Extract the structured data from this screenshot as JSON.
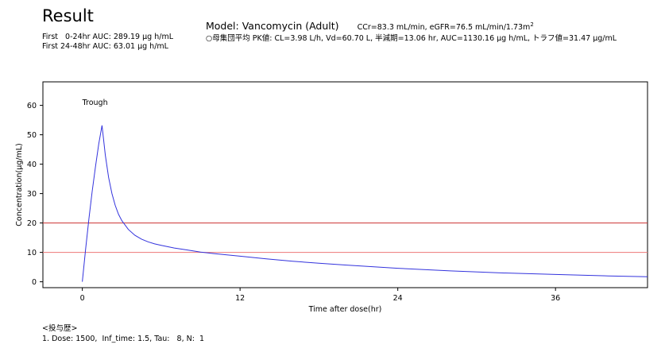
{
  "header": {
    "title": "Result",
    "auc_first_0_24": "First   0-24hr AUC: 289.19 μg h/mL",
    "auc_first_24_48": "First 24-48hr AUC: 63.01 μg h/mL",
    "model": "Model: Vancomycin (Adult)",
    "renal": "CCr=83.3 mL/min,  eGFR=76.5 mL/min/1.73m",
    "renal_sup": "2",
    "pk_params": "○母集団平均 PK値: CL=3.98 L/h, Vd=60.70 L, 半減期=13.06 hr, AUC=1130.16 μg h/mL, トラフ値=31.47 μg/mL"
  },
  "dose_history": {
    "heading": "<投与歴>",
    "entries": [
      "1. Dose: 1500,  Inf_time: 1.5, Tau:   8, N:  1"
    ]
  },
  "chart_data": {
    "type": "line",
    "xlabel": "Time after dose(hr)",
    "ylabel": "Concentration(μg/mL)",
    "xlim": [
      -3,
      43
    ],
    "ylim": [
      -2,
      68
    ],
    "x_ticks": [
      0,
      12,
      24,
      36
    ],
    "y_ticks": [
      0,
      10,
      20,
      30,
      40,
      50,
      60
    ],
    "grid": false,
    "annotations": [
      {
        "text": "Trough",
        "x": 0,
        "y": 60
      }
    ],
    "reference_lines": [
      {
        "y": 20,
        "color": "#cc3333"
      },
      {
        "y": 10,
        "color": "#ee7777"
      }
    ],
    "series": [
      {
        "color": "#3333dd",
        "x": [
          0,
          0.25,
          0.5,
          0.75,
          1.0,
          1.25,
          1.5,
          1.75,
          2.0,
          2.25,
          2.5,
          2.75,
          3.0,
          3.5,
          4.0,
          4.5,
          5.0,
          5.5,
          6.0,
          7.0,
          8.0,
          9.0,
          10.0,
          12.0,
          14.0,
          16.0,
          18.0,
          20.0,
          24.0,
          28.0,
          32.0,
          36.0,
          40.0,
          43.0
        ],
        "y": [
          0,
          11.2,
          21.4,
          30.7,
          39.2,
          46.9,
          53.2,
          43.0,
          35.5,
          30.0,
          26.0,
          23.0,
          20.8,
          17.8,
          15.8,
          14.5,
          13.6,
          12.9,
          12.4,
          11.5,
          10.8,
          10.1,
          9.6,
          8.7,
          7.8,
          7.0,
          6.3,
          5.7,
          4.6,
          3.7,
          3.0,
          2.5,
          2.0,
          1.7
        ]
      }
    ]
  }
}
